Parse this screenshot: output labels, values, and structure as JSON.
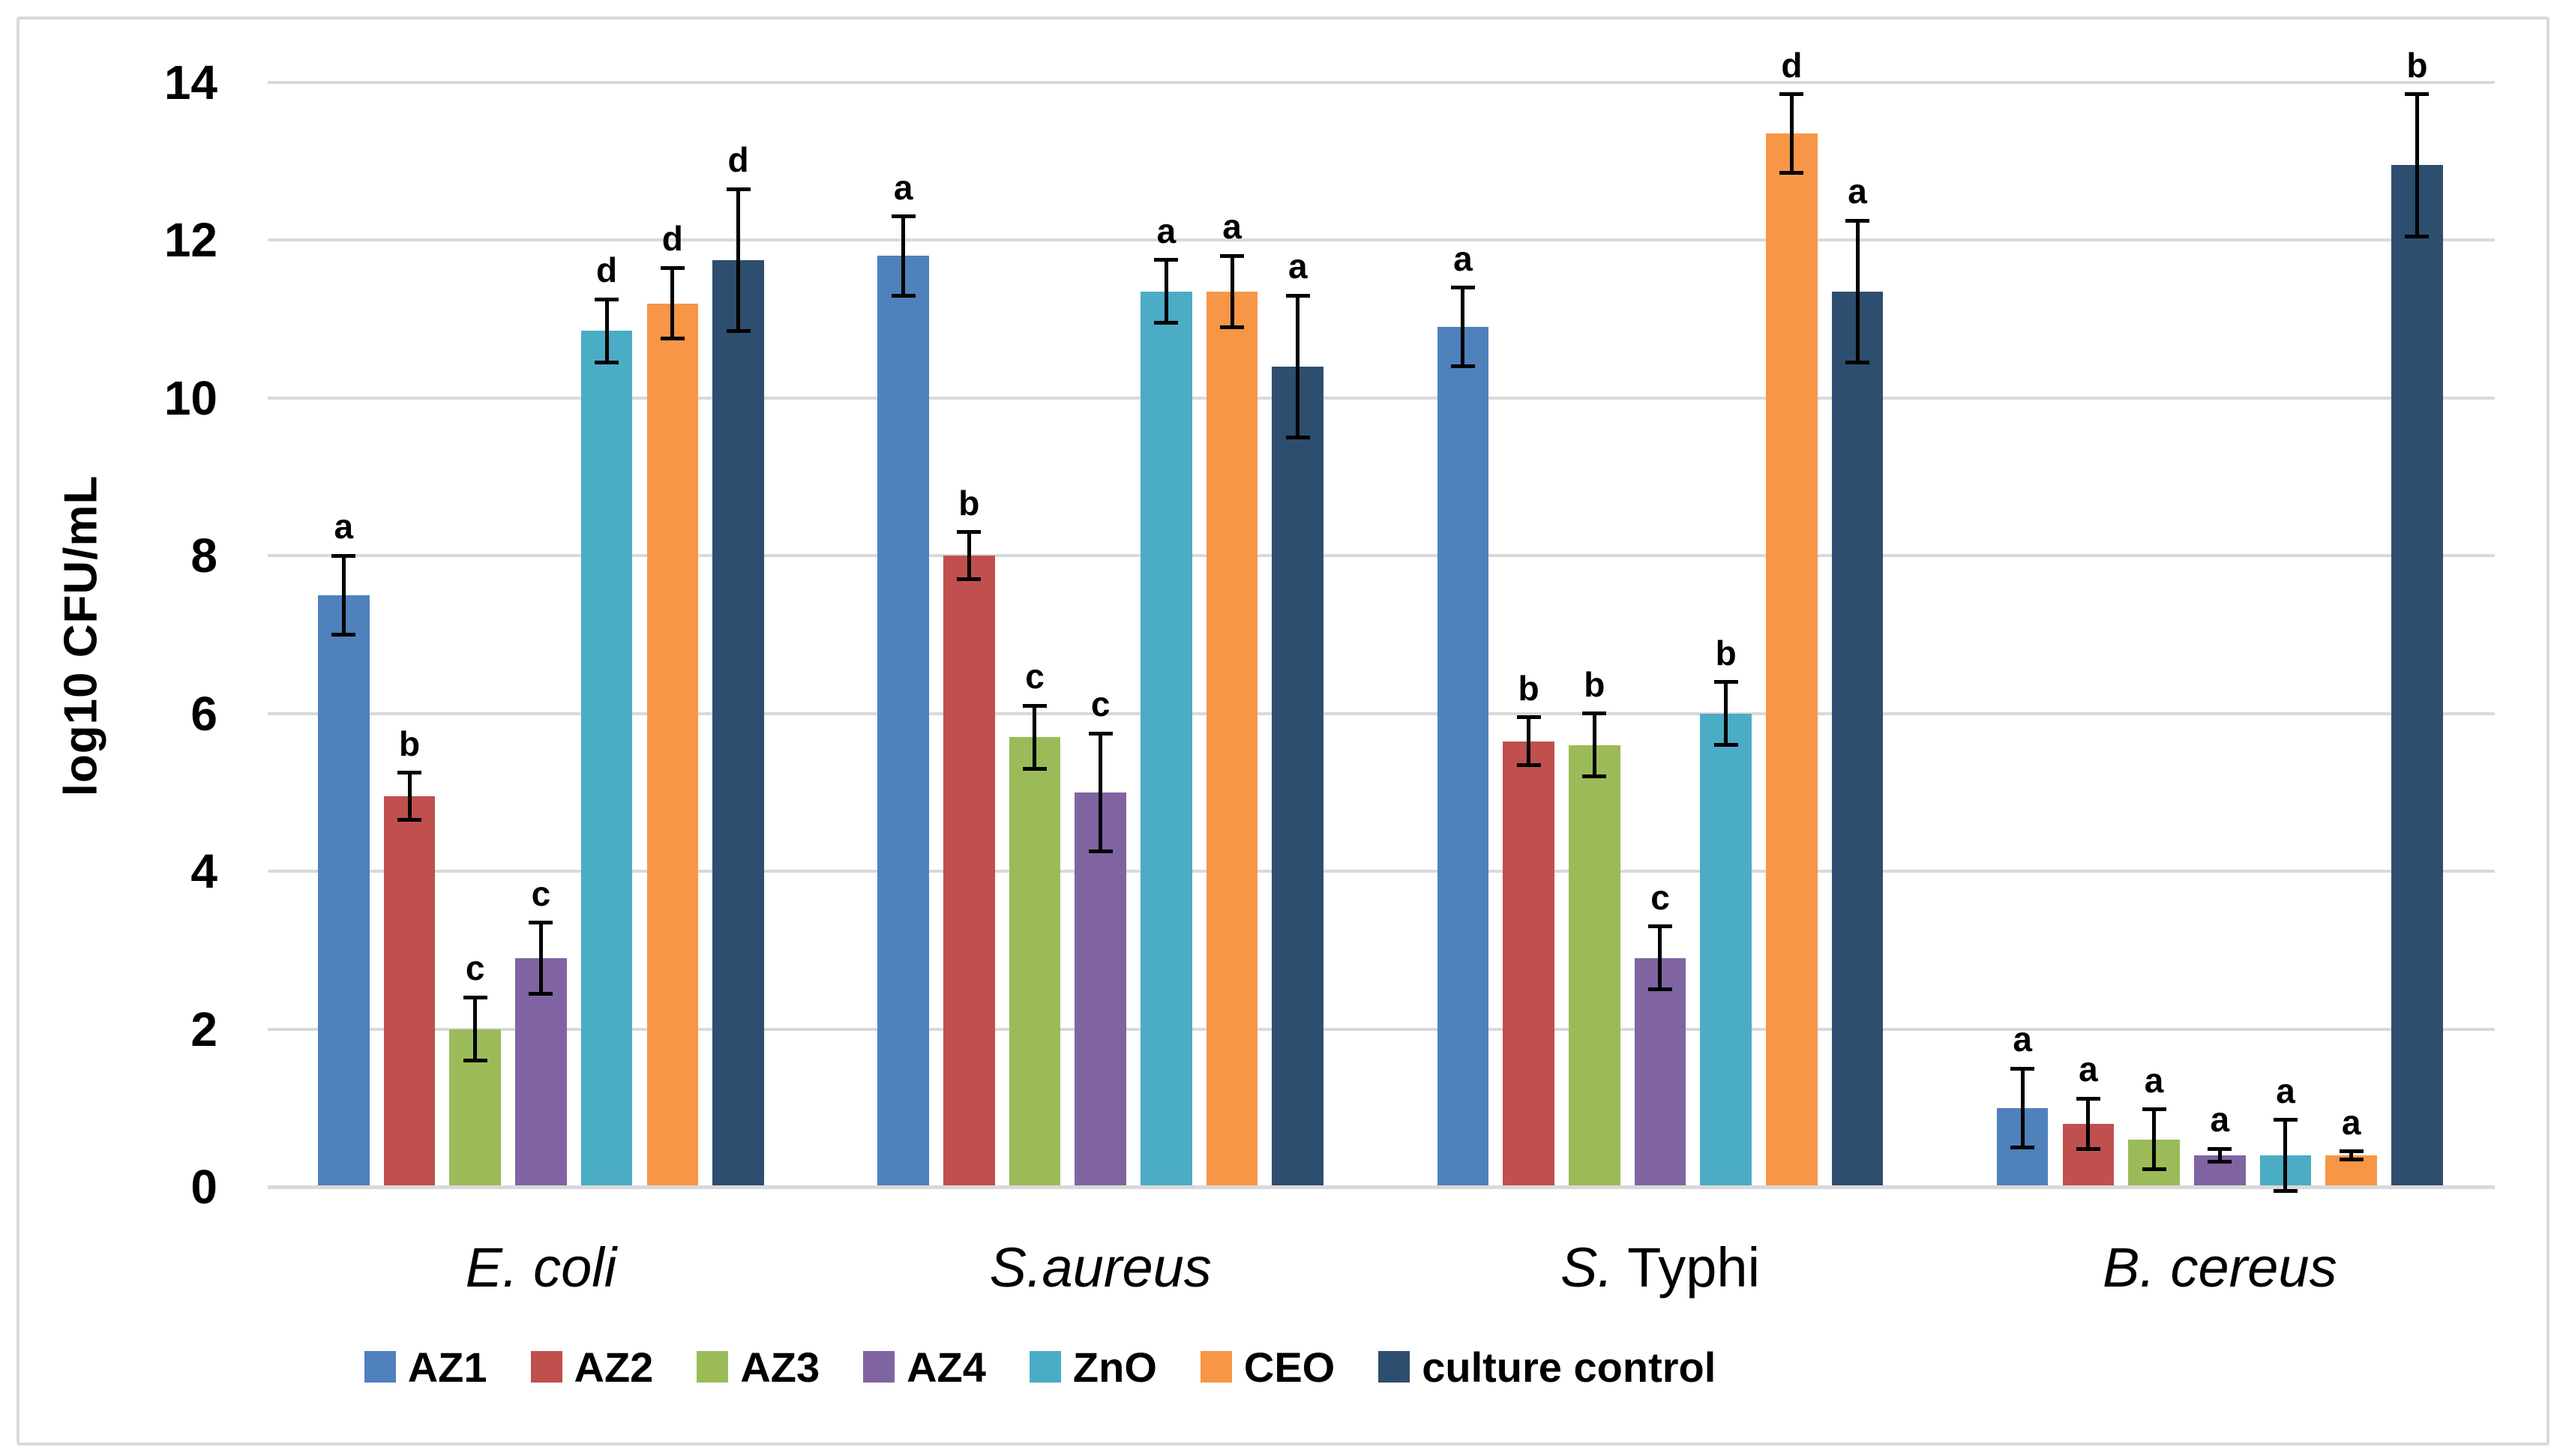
{
  "chart_data": {
    "type": "bar",
    "title": "",
    "ylabel": "log10 CFU/mL",
    "xlabel": "",
    "ylim": [
      0,
      14
    ],
    "yticks": [
      0,
      2,
      4,
      6,
      8,
      10,
      12,
      14
    ],
    "grid": "horizontal",
    "legend_position": "bottom",
    "error_bars": true,
    "categories": [
      {
        "segments": [
          {
            "text": "E. coli",
            "italic": true
          }
        ]
      },
      {
        "segments": [
          {
            "text": "S.aureus",
            "italic": true
          }
        ]
      },
      {
        "segments": [
          {
            "text": "S.",
            "italic": true
          },
          {
            "text": " Typhi",
            "italic": false
          }
        ]
      },
      {
        "segments": [
          {
            "text": "B. cereus",
            "italic": true
          }
        ]
      }
    ],
    "series": [
      {
        "name": "AZ1",
        "color": "#4F81BD",
        "values": [
          7.5,
          11.8,
          10.9,
          1.0
        ],
        "errors": [
          0.5,
          0.5,
          0.5,
          0.5
        ],
        "letters": [
          "a",
          "a",
          "a",
          "a"
        ]
      },
      {
        "name": "AZ2",
        "color": "#C0504D",
        "values": [
          4.95,
          8.0,
          5.65,
          0.8
        ],
        "errors": [
          0.3,
          0.3,
          0.3,
          0.32
        ],
        "letters": [
          "b",
          "b",
          "b",
          "a"
        ]
      },
      {
        "name": "AZ3",
        "color": "#9BBB59",
        "values": [
          2.0,
          5.7,
          5.6,
          0.6
        ],
        "errors": [
          0.4,
          0.4,
          0.4,
          0.38
        ],
        "letters": [
          "c",
          "c",
          "b",
          "a"
        ]
      },
      {
        "name": "AZ4",
        "color": "#8064A2",
        "values": [
          2.9,
          5.0,
          2.9,
          0.4
        ],
        "errors": [
          0.45,
          0.75,
          0.4,
          0.08
        ],
        "letters": [
          "c",
          "c",
          "c",
          "a"
        ]
      },
      {
        "name": "ZnO",
        "color": "#4BACC6",
        "values": [
          10.85,
          11.35,
          6.0,
          0.4
        ],
        "errors": [
          0.4,
          0.4,
          0.4,
          0.45
        ],
        "letters": [
          "d",
          "a",
          "b",
          "a"
        ]
      },
      {
        "name": "CEO",
        "color": "#F79646",
        "values": [
          11.2,
          11.35,
          13.35,
          0.4
        ],
        "errors": [
          0.45,
          0.45,
          0.5,
          0.05
        ],
        "letters": [
          "d",
          "a",
          "d",
          "a"
        ]
      },
      {
        "name": "culture control",
        "color": "#2E4E6F",
        "values": [
          11.75,
          10.4,
          11.35,
          12.95
        ],
        "errors": [
          0.9,
          0.9,
          0.9,
          0.9
        ],
        "letters": [
          "d",
          "a",
          "a",
          "b"
        ]
      }
    ]
  },
  "colors": {
    "background": "#FFFFFF",
    "gridline": "#D9D9D9",
    "axis_line": "#D9D9D9",
    "outer_border": "#D9D9D9",
    "error_bar": "#000000",
    "letter": "#000000",
    "text": "#000000"
  }
}
